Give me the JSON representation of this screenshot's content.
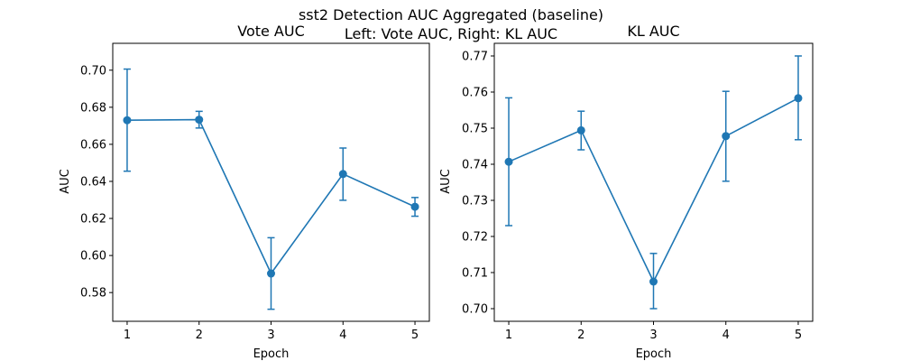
{
  "figure": {
    "suptitle_line1": "sst2 Detection AUC Aggregated (baseline)",
    "suptitle_line2": "Left: Vote AUC, Right: KL AUC"
  },
  "chart_data": [
    {
      "type": "line",
      "title": "Vote AUC",
      "xlabel": "Epoch",
      "ylabel": "AUC",
      "color": "#1f77b4",
      "grid": false,
      "xlim": [
        0.8,
        5.2
      ],
      "ylim": [
        0.5645,
        0.7145
      ],
      "xticks": [
        1,
        2,
        3,
        4,
        5
      ],
      "xtick_labels": [
        "1",
        "2",
        "3",
        "4",
        "5"
      ],
      "yticks": [
        0.58,
        0.6,
        0.62,
        0.64,
        0.66,
        0.68,
        0.7
      ],
      "ytick_labels": [
        "0.58",
        "0.60",
        "0.62",
        "0.64",
        "0.66",
        "0.68",
        "0.70"
      ],
      "series": [
        {
          "x": [
            1,
            2,
            3,
            4,
            5
          ],
          "y": [
            0.673,
            0.6733,
            0.5903,
            0.644,
            0.6263
          ],
          "yerr_low": [
            0.6455,
            0.6688,
            0.571,
            0.6298,
            0.6212
          ],
          "yerr_high": [
            0.7006,
            0.6778,
            0.6096,
            0.658,
            0.6313
          ]
        }
      ]
    },
    {
      "type": "line",
      "title": "KL AUC",
      "xlabel": "Epoch",
      "ylabel": "AUC",
      "color": "#1f77b4",
      "grid": false,
      "xlim": [
        0.8,
        5.2
      ],
      "ylim": [
        0.6965,
        0.7735
      ],
      "xticks": [
        1,
        2,
        3,
        4,
        5
      ],
      "xtick_labels": [
        "1",
        "2",
        "3",
        "4",
        "5"
      ],
      "yticks": [
        0.7,
        0.71,
        0.72,
        0.73,
        0.74,
        0.75,
        0.76,
        0.77
      ],
      "ytick_labels": [
        "0.70",
        "0.71",
        "0.72",
        "0.73",
        "0.74",
        "0.75",
        "0.76",
        "0.77"
      ],
      "series": [
        {
          "x": [
            1,
            2,
            3,
            4,
            5
          ],
          "y": [
            0.7407,
            0.7494,
            0.7075,
            0.7478,
            0.7583
          ],
          "yerr_low": [
            0.723,
            0.744,
            0.7,
            0.7353,
            0.7468
          ],
          "yerr_high": [
            0.7584,
            0.7547,
            0.7153,
            0.7602,
            0.77
          ]
        }
      ]
    }
  ]
}
